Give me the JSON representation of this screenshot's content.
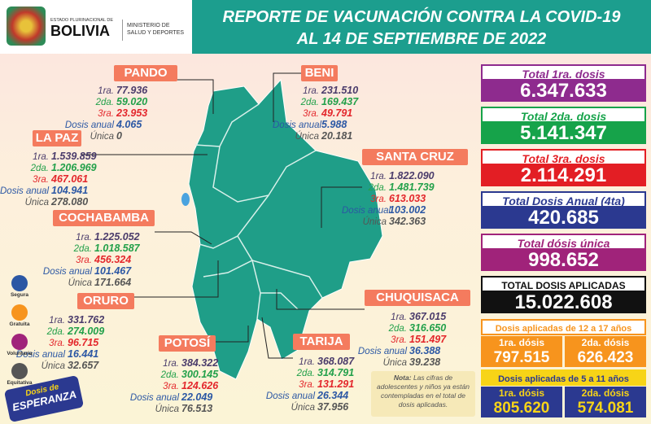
{
  "header": {
    "logo_line1": "ESTADO PLURINACIONAL DE",
    "logo_line2": "BOLIVIA",
    "ministry_line1": "MINISTERIO DE",
    "ministry_line2": "SALUD Y DEPORTES",
    "title": "REPORTE DE VACUNACIÓN CONTRA LA COVID-19",
    "subtitle": "AL 14 DE SEPTIEMBRE DE 2022"
  },
  "row_labels": [
    "1ra.",
    "2da.",
    "3ra.",
    "Dosis anual",
    "Única"
  ],
  "departments": [
    {
      "name": "PANDO",
      "values": [
        "77.936",
        "59.020",
        "23.953",
        "4.065",
        "0"
      ]
    },
    {
      "name": "BENI",
      "values": [
        "231.510",
        "169.437",
        "49.791",
        "5.988",
        "20.181"
      ]
    },
    {
      "name": "LA PAZ",
      "values": [
        "1.539.859",
        "1.206.969",
        "467.061",
        "104.941",
        "278.080"
      ]
    },
    {
      "name": "SANTA CRUZ",
      "values": [
        "1.822.090",
        "1.481.739",
        "613.033",
        "103.002",
        "342.363"
      ]
    },
    {
      "name": "COCHABAMBA",
      "values": [
        "1.225.052",
        "1.018.587",
        "456.324",
        "101.467",
        "171.664"
      ]
    },
    {
      "name": "ORURO",
      "values": [
        "331.762",
        "274.009",
        "96.715",
        "16.441",
        "32.657"
      ]
    },
    {
      "name": "POTOSÍ",
      "values": [
        "384.322",
        "300.145",
        "124.626",
        "22.049",
        "76.513"
      ]
    },
    {
      "name": "CHUQUISACA",
      "values": [
        "367.015",
        "316.650",
        "151.497",
        "36.388",
        "39.238"
      ]
    },
    {
      "name": "TARIJA",
      "values": [
        "368.087",
        "314.791",
        "131.291",
        "26.344",
        "37.956"
      ]
    }
  ],
  "totals": [
    {
      "label": "Total 1ra. dosis",
      "value": "6.347.633"
    },
    {
      "label": "Total 2da. dosis",
      "value": "5.141.347"
    },
    {
      "label": "Total 3ra. dosis",
      "value": "2.114.291"
    },
    {
      "label": "Total Dosis Anual (4ta)",
      "value": "420.685"
    },
    {
      "label": "Total dósis única",
      "value": "998.652"
    },
    {
      "label": "TOTAL DOSIS APLICADAS",
      "value": "15.022.608"
    }
  ],
  "age_groups": [
    {
      "title": "Dosis aplicadas de 12 a 17 años",
      "items": [
        {
          "label": "1ra. dósis",
          "value": "797.515"
        },
        {
          "label": "2da. dósis",
          "value": "626.423"
        }
      ]
    },
    {
      "title": "Dosis aplicadas de 5 a 11 años",
      "items": [
        {
          "label": "1ra. dósis",
          "value": "805.620"
        },
        {
          "label": "2da. dósis",
          "value": "574.081"
        }
      ]
    }
  ],
  "note": {
    "lead": "Nota:",
    "text": "Las cifras de adolescentes y niños ya están contempladas en el total de dosis aplicadas."
  },
  "icons": [
    "Segura",
    "Gratuita",
    "Voluntaria",
    "Equitativa"
  ],
  "badge": {
    "line1": "Dosis de",
    "line2": "ESPERANZA"
  }
}
